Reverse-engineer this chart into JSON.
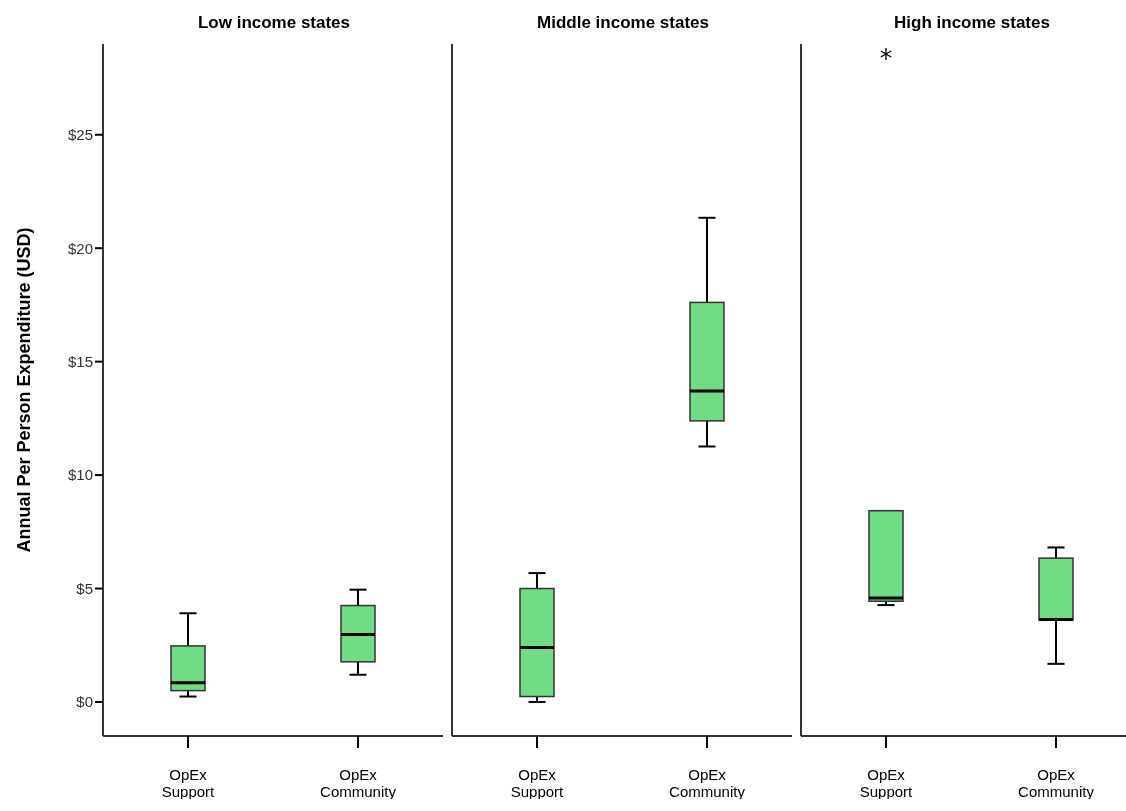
{
  "chart_data": [
    {
      "type": "box",
      "title": "Low income states",
      "ylabel": "Annual Per Person Expenditure (USD)",
      "categories": [
        "OpEx Support",
        "OpEx Community"
      ],
      "color": "#70dc84",
      "ylim": [
        -1.5,
        29
      ],
      "yticks": [
        {
          "value": 0,
          "label": "$0"
        },
        {
          "value": 5,
          "label": "$5"
        },
        {
          "value": 10,
          "label": "$10"
        },
        {
          "value": 15,
          "label": "$15"
        },
        {
          "value": 20,
          "label": "$20"
        },
        {
          "value": 25,
          "label": "$25"
        }
      ],
      "boxes": [
        {
          "low": 0.24,
          "q1": 0.5,
          "median": 0.85,
          "q3": 2.47,
          "high": 3.91
        },
        {
          "low": 1.2,
          "q1": 1.77,
          "median": 2.97,
          "q3": 4.25,
          "high": 4.95
        }
      ]
    },
    {
      "type": "box",
      "title": "Middle income states",
      "categories": [
        "OpEx Support",
        "OpEx Community"
      ],
      "color": "#70dc84",
      "ylim": [
        -1.5,
        29
      ],
      "tick_labels": "x",
      "boxes": [
        {
          "low": 0.0,
          "q1": 0.24,
          "median": 2.4,
          "q3": 5.0,
          "high": 5.68
        },
        {
          "low": 11.26,
          "q1": 12.39,
          "median": 13.71,
          "q3": 17.61,
          "high": 21.34
        }
      ]
    },
    {
      "type": "box",
      "title": "High income states",
      "categories": [
        "OpEx Support",
        "OpEx Community"
      ],
      "color": "#70dc84",
      "ylim": [
        -1.5,
        29
      ],
      "tick_labels": "x",
      "boxes": [
        {
          "low": 4.27,
          "q1": 4.44,
          "median": 4.58,
          "q3": 8.43,
          "high": 8.43,
          "outliers": [
            28.56
          ]
        },
        {
          "low": 1.68,
          "q1": 3.6,
          "median": 3.64,
          "q3": 6.34,
          "high": 6.81
        }
      ]
    }
  ]
}
